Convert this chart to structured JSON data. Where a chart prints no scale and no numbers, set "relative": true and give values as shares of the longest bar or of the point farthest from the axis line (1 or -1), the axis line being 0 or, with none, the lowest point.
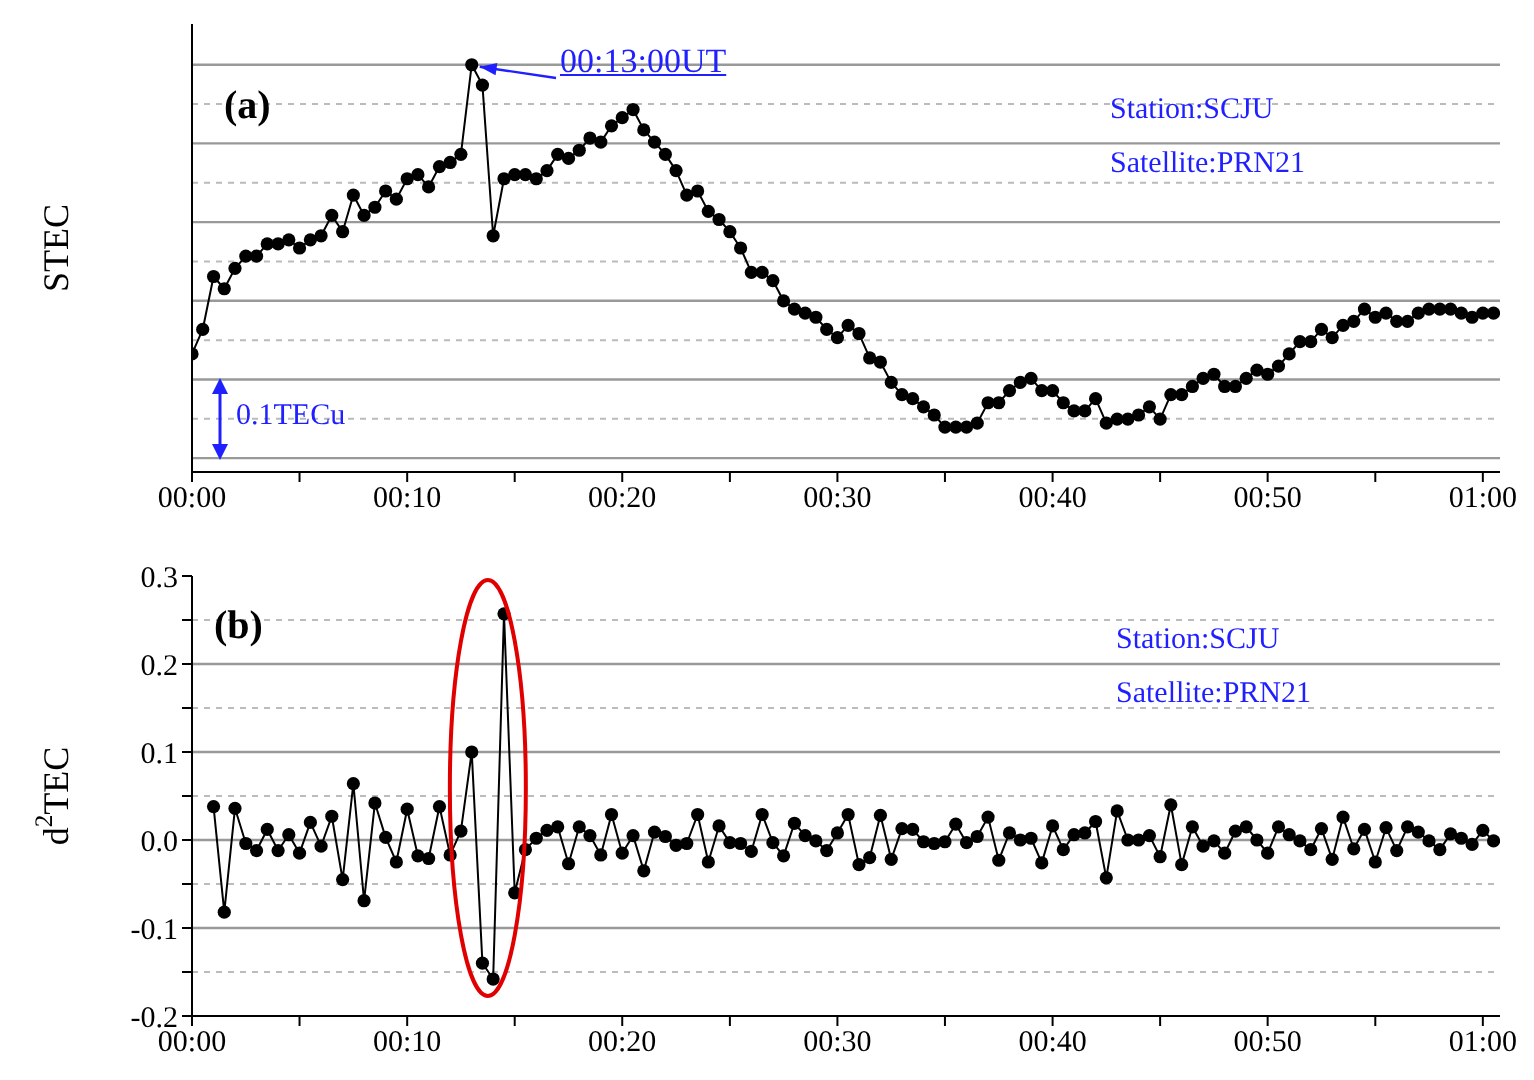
{
  "chart_data": [
    {
      "type": "line",
      "relative": true,
      "ylabel": "STEC",
      "marker": "circle",
      "grid": "y",
      "x": [
        0,
        0.0083,
        0.0167,
        0.025,
        0.0333,
        0.0417,
        0.05,
        0.0583,
        0.0667,
        0.075,
        0.0833,
        0.0917,
        0.1,
        0.1083,
        0.1167,
        0.125,
        0.1333,
        0.1417,
        0.15,
        0.1583,
        0.1667,
        0.175,
        0.1833,
        0.1917,
        0.2,
        0.2083,
        0.2167,
        0.225,
        0.2333,
        0.2417,
        0.25,
        0.2583,
        0.2667,
        0.275,
        0.2833,
        0.2917,
        0.3,
        0.3083,
        0.3167,
        0.325,
        0.3333,
        0.3417,
        0.35,
        0.3583,
        0.3667,
        0.375,
        0.3833,
        0.3917,
        0.4,
        0.4083,
        0.4167,
        0.425,
        0.4333,
        0.4417,
        0.45,
        0.4583,
        0.4667,
        0.475,
        0.4833,
        0.4917,
        0.5,
        0.5083,
        0.5167,
        0.525,
        0.5333,
        0.5417,
        0.55,
        0.5583,
        0.5667,
        0.575,
        0.5833,
        0.5917,
        0.6,
        0.6083,
        0.6167,
        0.625,
        0.6333,
        0.6417,
        0.65,
        0.6583,
        0.6667,
        0.675,
        0.6833,
        0.6917,
        0.7,
        0.7083,
        0.7167,
        0.725,
        0.7333,
        0.7417,
        0.75,
        0.7583,
        0.7667,
        0.775,
        0.7833,
        0.7917,
        0.8,
        0.8083,
        0.8167,
        0.825,
        0.8333,
        0.8417,
        0.85,
        0.8583,
        0.8667,
        0.875,
        0.8833,
        0.8917,
        0.9,
        0.9083,
        0.9167,
        0.925,
        0.9333,
        0.9417,
        0.95,
        0.9583,
        0.9667,
        0.975,
        0.9833,
        0.9917,
        1,
        1.0083
      ],
      "xlim": [
        0,
        1.0133
      ],
      "xticks": [
        {
          "value": 0,
          "label": "00:00"
        },
        {
          "value": 0.0833,
          "label": null
        },
        {
          "value": 0.1667,
          "label": "00:10"
        },
        {
          "value": 0.25,
          "label": null
        },
        {
          "value": 0.3333,
          "label": "00:20"
        },
        {
          "value": 0.4167,
          "label": null
        },
        {
          "value": 0.5,
          "label": "00:30"
        },
        {
          "value": 0.5833,
          "label": null
        },
        {
          "value": 0.6667,
          "label": "00:40"
        },
        {
          "value": 0.75,
          "label": null
        },
        {
          "value": 0.8333,
          "label": "00:50"
        },
        {
          "value": 0.9167,
          "label": null
        },
        {
          "value": 1,
          "label": "01:00"
        }
      ],
      "series": [
        {
          "color": "#000000",
          "values": [
            0.29,
            0.35,
            0.48,
            0.45,
            0.5,
            0.53,
            0.53,
            0.56,
            0.56,
            0.57,
            0.55,
            0.57,
            0.58,
            0.63,
            0.59,
            0.68,
            0.63,
            0.65,
            0.69,
            0.67,
            0.72,
            0.73,
            0.7,
            0.75,
            0.76,
            0.78,
            1,
            0.95,
            0.58,
            0.72,
            0.73,
            0.73,
            0.72,
            0.74,
            0.78,
            0.77,
            0.79,
            0.82,
            0.81,
            0.85,
            0.87,
            0.89,
            0.84,
            0.81,
            0.78,
            0.74,
            0.68,
            0.69,
            0.64,
            0.62,
            0.59,
            0.55,
            0.49,
            0.49,
            0.47,
            0.42,
            0.4,
            0.39,
            0.38,
            0.35,
            0.33,
            0.36,
            0.34,
            0.28,
            0.27,
            0.22,
            0.19,
            0.18,
            0.16,
            0.14,
            0.11,
            0.11,
            0.11,
            0.12,
            0.17,
            0.17,
            0.2,
            0.22,
            0.23,
            0.2,
            0.2,
            0.17,
            0.15,
            0.15,
            0.18,
            0.12,
            0.13,
            0.13,
            0.14,
            0.16,
            0.13,
            0.19,
            0.19,
            0.21,
            0.23,
            0.24,
            0.21,
            0.21,
            0.23,
            0.25,
            0.24,
            0.26,
            0.29,
            0.32,
            0.32,
            0.35,
            0.33,
            0.36,
            0.37,
            0.4,
            0.38,
            0.39,
            0.37,
            0.37,
            0.39,
            0.4,
            0.4,
            0.4,
            0.39,
            0.38,
            0.39,
            0.39
          ]
        }
      ],
      "annotations": [
        "(a)",
        {
          "text": "00:13:00UT",
          "x": 0.2167,
          "y": 1
        },
        "Station:SCJU",
        "Satellite:PRN21",
        "0.1TECu"
      ]
    },
    {
      "type": "line",
      "ylabel": "d$^{2}$TEC",
      "marker": "circle",
      "grid": "y",
      "x": [
        0.0167,
        0.025,
        0.0333,
        0.0417,
        0.05,
        0.0583,
        0.0667,
        0.075,
        0.0833,
        0.0917,
        0.1,
        0.1083,
        0.1167,
        0.125,
        0.1333,
        0.1417,
        0.15,
        0.1583,
        0.1667,
        0.175,
        0.1833,
        0.1917,
        0.2,
        0.2083,
        0.2167,
        0.225,
        0.2333,
        0.2417,
        0.25,
        0.2583,
        0.2667,
        0.275,
        0.2833,
        0.2917,
        0.3,
        0.3083,
        0.3167,
        0.325,
        0.3333,
        0.3417,
        0.35,
        0.3583,
        0.3667,
        0.375,
        0.3833,
        0.3917,
        0.4,
        0.4083,
        0.4167,
        0.425,
        0.4333,
        0.4417,
        0.45,
        0.4583,
        0.4667,
        0.475,
        0.4833,
        0.4917,
        0.5,
        0.5083,
        0.5167,
        0.525,
        0.5333,
        0.5417,
        0.55,
        0.5583,
        0.5667,
        0.575,
        0.5833,
        0.5917,
        0.6,
        0.6083,
        0.6167,
        0.625,
        0.6333,
        0.6417,
        0.65,
        0.6583,
        0.6667,
        0.675,
        0.6833,
        0.6917,
        0.7,
        0.7083,
        0.7167,
        0.725,
        0.7333,
        0.7417,
        0.75,
        0.7583,
        0.7667,
        0.775,
        0.7833,
        0.7917,
        0.8,
        0.8083,
        0.8167,
        0.825,
        0.8333,
        0.8417,
        0.85,
        0.8583,
        0.8667,
        0.875,
        0.8833,
        0.8917,
        0.9,
        0.9083,
        0.9167,
        0.925,
        0.9333,
        0.9417,
        0.95,
        0.9583,
        0.9667,
        0.975,
        0.9833,
        0.9917,
        1,
        1.0083
      ],
      "xlim": [
        0,
        1.0133
      ],
      "xticks": [
        {
          "value": 0,
          "label": "00:00"
        },
        {
          "value": 0.0833,
          "label": null
        },
        {
          "value": 0.1667,
          "label": "00:10"
        },
        {
          "value": 0.25,
          "label": null
        },
        {
          "value": 0.3333,
          "label": "00:20"
        },
        {
          "value": 0.4167,
          "label": null
        },
        {
          "value": 0.5,
          "label": "00:30"
        },
        {
          "value": 0.5833,
          "label": null
        },
        {
          "value": 0.6667,
          "label": "00:40"
        },
        {
          "value": 0.75,
          "label": null
        },
        {
          "value": 0.8333,
          "label": "00:50"
        },
        {
          "value": 0.9167,
          "label": null
        },
        {
          "value": 1,
          "label": "01:00"
        }
      ],
      "ylim": [
        -0.2,
        0.3
      ],
      "yticks": [
        -0.2,
        {
          "value": -0.15,
          "label": null
        },
        -0.1,
        {
          "value": -0.05,
          "label": null
        },
        {
          "value": 0,
          "label": "0.0"
        },
        {
          "value": 0.05,
          "label": null
        },
        0.1,
        {
          "value": 0.15,
          "label": null
        },
        0.2,
        {
          "value": 0.25,
          "label": null
        },
        0.3
      ],
      "series": [
        {
          "color": "#000000",
          "values": [
            0.038,
            -0.082,
            0.036,
            -0.004,
            -0.012,
            0.012,
            -0.012,
            0.006,
            -0.015,
            0.02,
            -0.007,
            0.027,
            -0.045,
            0.064,
            -0.069,
            0.042,
            0.003,
            -0.025,
            0.035,
            -0.018,
            -0.021,
            0.038,
            -0.017,
            0.01,
            0.1,
            -0.14,
            -0.158,
            0.257,
            -0.06,
            -0.011,
            0.002,
            0.011,
            0.015,
            -0.027,
            0.015,
            0.005,
            -0.017,
            0.029,
            -0.015,
            0.005,
            -0.035,
            0.009,
            0.004,
            -0.006,
            -0.004,
            0.029,
            -0.025,
            0.016,
            -0.003,
            -0.004,
            -0.013,
            0.029,
            -0.003,
            -0.018,
            0.019,
            0.005,
            -0.001,
            -0.012,
            0.008,
            0.029,
            -0.028,
            -0.02,
            0.028,
            -0.022,
            0.013,
            0.012,
            -0.002,
            -0.004,
            -0.002,
            0.018,
            -0.003,
            0.004,
            0.026,
            -0.023,
            0.008,
            0,
            0.002,
            -0.026,
            0.016,
            -0.011,
            0.006,
            0.008,
            0.021,
            -0.043,
            0.033,
            0,
            0,
            0.005,
            -0.019,
            0.04,
            -0.028,
            0.015,
            -0.007,
            -0.001,
            -0.015,
            0.01,
            0.015,
            0,
            -0.015,
            0.015,
            0.006,
            -0.001,
            -0.011,
            0.013,
            -0.022,
            0.026,
            -0.01,
            0.012,
            -0.025,
            0.014,
            -0.012,
            0.015,
            0.009,
            -0.001,
            -0.011,
            0.007,
            0.002,
            -0.005,
            0.011,
            -0.001
          ]
        }
      ],
      "annotations": [
        "(b)",
        "Station:SCJU",
        "Satellite:PRN21"
      ]
    }
  ]
}
